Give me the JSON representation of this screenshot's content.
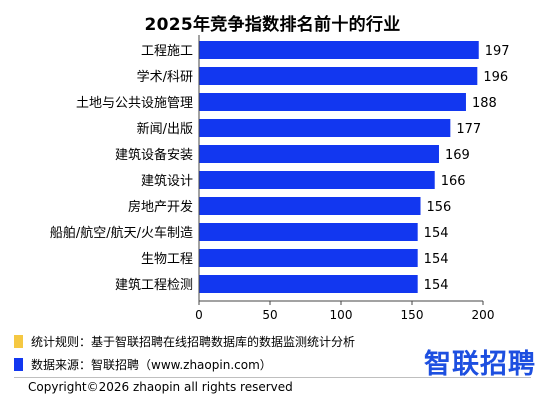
{
  "colors": {
    "bar": "#1237f0",
    "rule_swatch": "#f5c842",
    "source_swatch": "#1237f0",
    "logo": "#1d4fe0",
    "axis": "#444444"
  },
  "chart_data": {
    "type": "bar",
    "orientation": "horizontal",
    "title": "2025年竞争指数排名前十的行业",
    "categories": [
      "工程施工",
      "学术/科研",
      "土地与公共设施管理",
      "新闻/出版",
      "建筑设备安装",
      "建筑设计",
      "房地产开发",
      "船舶/航空/航天/火车制造",
      "生物工程",
      "建筑工程检测"
    ],
    "values": [
      197,
      196,
      188,
      177,
      169,
      166,
      156,
      154,
      154,
      154
    ],
    "x_ticks": [
      0,
      50,
      100,
      150,
      200
    ],
    "xlim": [
      0,
      200
    ],
    "grid": false,
    "data_labels": true
  },
  "footer": {
    "rule_text": "统计规则：基于智联招聘在线招聘数据库的数据监测统计分析",
    "source_text": "数据来源：智联招聘（www.zhaopin.com）",
    "logo_text": "智联招聘",
    "copyright": "Copyright©2026 zhaopin all rights reserved"
  }
}
